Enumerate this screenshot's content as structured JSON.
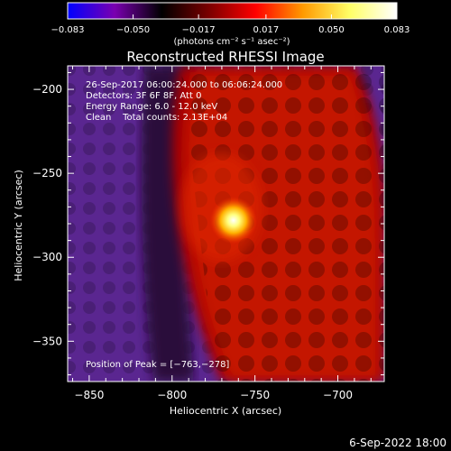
{
  "colorbar": {
    "ticks": [
      "-0.083",
      "-0.050",
      "-0.017",
      "0.017",
      "0.050",
      "0.083"
    ],
    "tick_values": [
      -0.083,
      -0.05,
      -0.017,
      0.017,
      0.05,
      0.083
    ],
    "range": [
      -0.083,
      0.083
    ],
    "units_label": "(photons cm⁻² s⁻¹ asec⁻²)",
    "colormap_stops": [
      "#0000ff",
      "#7a00b0",
      "#000000",
      "#7a0000",
      "#ff0000",
      "#ff9900",
      "#ffff66",
      "#ffffff"
    ]
  },
  "chart_data": {
    "type": "heatmap",
    "title": "Reconstructed RHESSI Image",
    "xlabel": "Heliocentric X (arcsec)",
    "ylabel": "Heliocentric Y (arcsec)",
    "xlim": [
      -863,
      -672
    ],
    "ylim": [
      -374,
      -186
    ],
    "xticks": [
      -850,
      -800,
      -750,
      -700
    ],
    "xtick_labels": [
      "−850",
      "−800",
      "−750",
      "−700"
    ],
    "yticks": [
      -200,
      -250,
      -300,
      -350
    ],
    "ytick_labels": [
      "−200",
      "−250",
      "−300",
      "−350"
    ],
    "peak": {
      "x": -763,
      "y": -278
    },
    "info_lines": [
      "26-Sep-2017 06:00:24.000 to 06:06:24.000",
      "Detectors: 3F 6F 8F, Att 0",
      "Energy Range: 6.0 - 12.0 keV",
      "Clean    Total counts: 2.13E+04"
    ],
    "peak_label": "Position of Peak = [−763,−278]"
  },
  "footer": {
    "timestamp": "6-Sep-2022 18:00"
  }
}
